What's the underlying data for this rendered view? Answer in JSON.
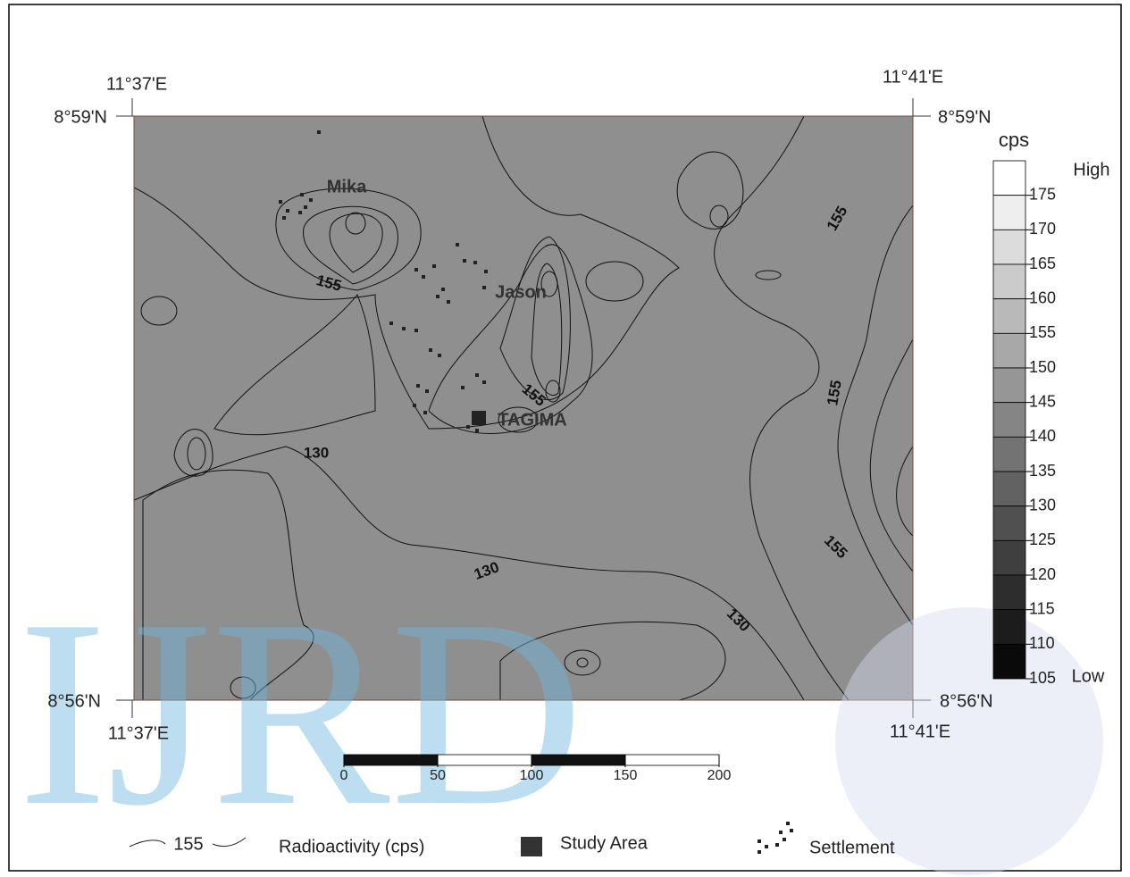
{
  "map": {
    "corner_labels": {
      "top_left_lon": "11°37'E",
      "top_left_lat": "8°59'N",
      "top_right_lon": "11°41'E",
      "top_right_lat": "8°59'N",
      "bottom_left_lat": "8°56'N",
      "bottom_left_lon": "11°37'E",
      "bottom_right_lat": "8°56'N",
      "bottom_right_lon": "11°41'E"
    },
    "places": [
      "Mika",
      "Jason",
      "TAGIMA"
    ],
    "contour_labels": [
      155,
      155,
      155,
      155,
      155,
      130,
      130,
      130
    ]
  },
  "colorbar": {
    "unit": "cps",
    "high": "High",
    "low": "Low",
    "levels": [
      175,
      170,
      165,
      160,
      155,
      150,
      145,
      140,
      135,
      130,
      125,
      120,
      115,
      110,
      105
    ]
  },
  "scale_bar": {
    "ticks": [
      0,
      50,
      100,
      150,
      200
    ]
  },
  "legend": {
    "contour_sample": 155,
    "contour_text": "Radioactivity (cps)",
    "study_area": "Study Area",
    "settlement": "Settlement"
  },
  "watermark": "IJRD"
}
